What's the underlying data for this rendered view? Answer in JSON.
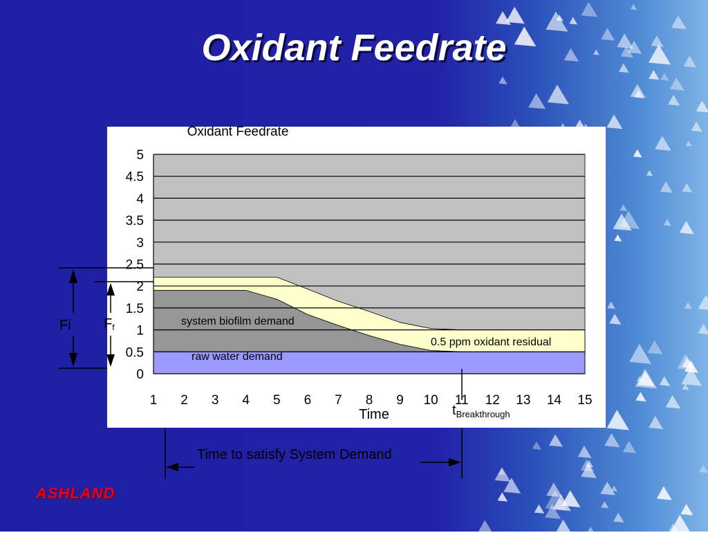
{
  "slide": {
    "title": "Oxidant Feedrate",
    "logo_text": "ASHLAND",
    "brand_color": "#e8001a",
    "background": "#1f1fa3"
  },
  "chart_data": {
    "type": "area",
    "title": "Oxidant Feedrate",
    "xlabel": "Time",
    "ylabel": "",
    "x": [
      1,
      2,
      3,
      4,
      5,
      6,
      7,
      8,
      9,
      10,
      11,
      12,
      13,
      14,
      15
    ],
    "xlim": [
      1,
      15
    ],
    "ylim": [
      0,
      5
    ],
    "yticks": [
      "0",
      "0.5",
      "1",
      "1.5",
      "2",
      "2.5",
      "3",
      "3.5",
      "4",
      "4.5",
      "5"
    ],
    "grid": true,
    "stacked": true,
    "series": [
      {
        "name": "raw water demand",
        "color": "#9999ff",
        "values": [
          0.5,
          0.5,
          0.5,
          0.5,
          0.5,
          0.5,
          0.5,
          0.5,
          0.5,
          0.5,
          0.5,
          0.5,
          0.5,
          0.5,
          0.5
        ]
      },
      {
        "name": "system biofilm demand",
        "color": "#969696",
        "values": [
          1.4,
          1.4,
          1.4,
          1.4,
          1.2,
          0.85,
          0.6,
          0.37,
          0.17,
          0.03,
          0,
          0,
          0,
          0,
          0
        ]
      },
      {
        "name": "0.5 ppm oxidant residual",
        "color": "#ffffcc",
        "values": [
          0.3,
          0.3,
          0.3,
          0.3,
          0.5,
          0.58,
          0.55,
          0.55,
          0.5,
          0.5,
          0.5,
          0.5,
          0.5,
          0.5,
          0.5
        ]
      }
    ],
    "plot_background": "#c0c0c0",
    "annotations": {
      "fi": "Fi",
      "ff": "F",
      "ff_sub": "f",
      "t_breakthrough": "t",
      "t_breakthrough_sub": "Breakthrough",
      "time_to_satisfy": "Time to satisfy System Demand"
    }
  }
}
